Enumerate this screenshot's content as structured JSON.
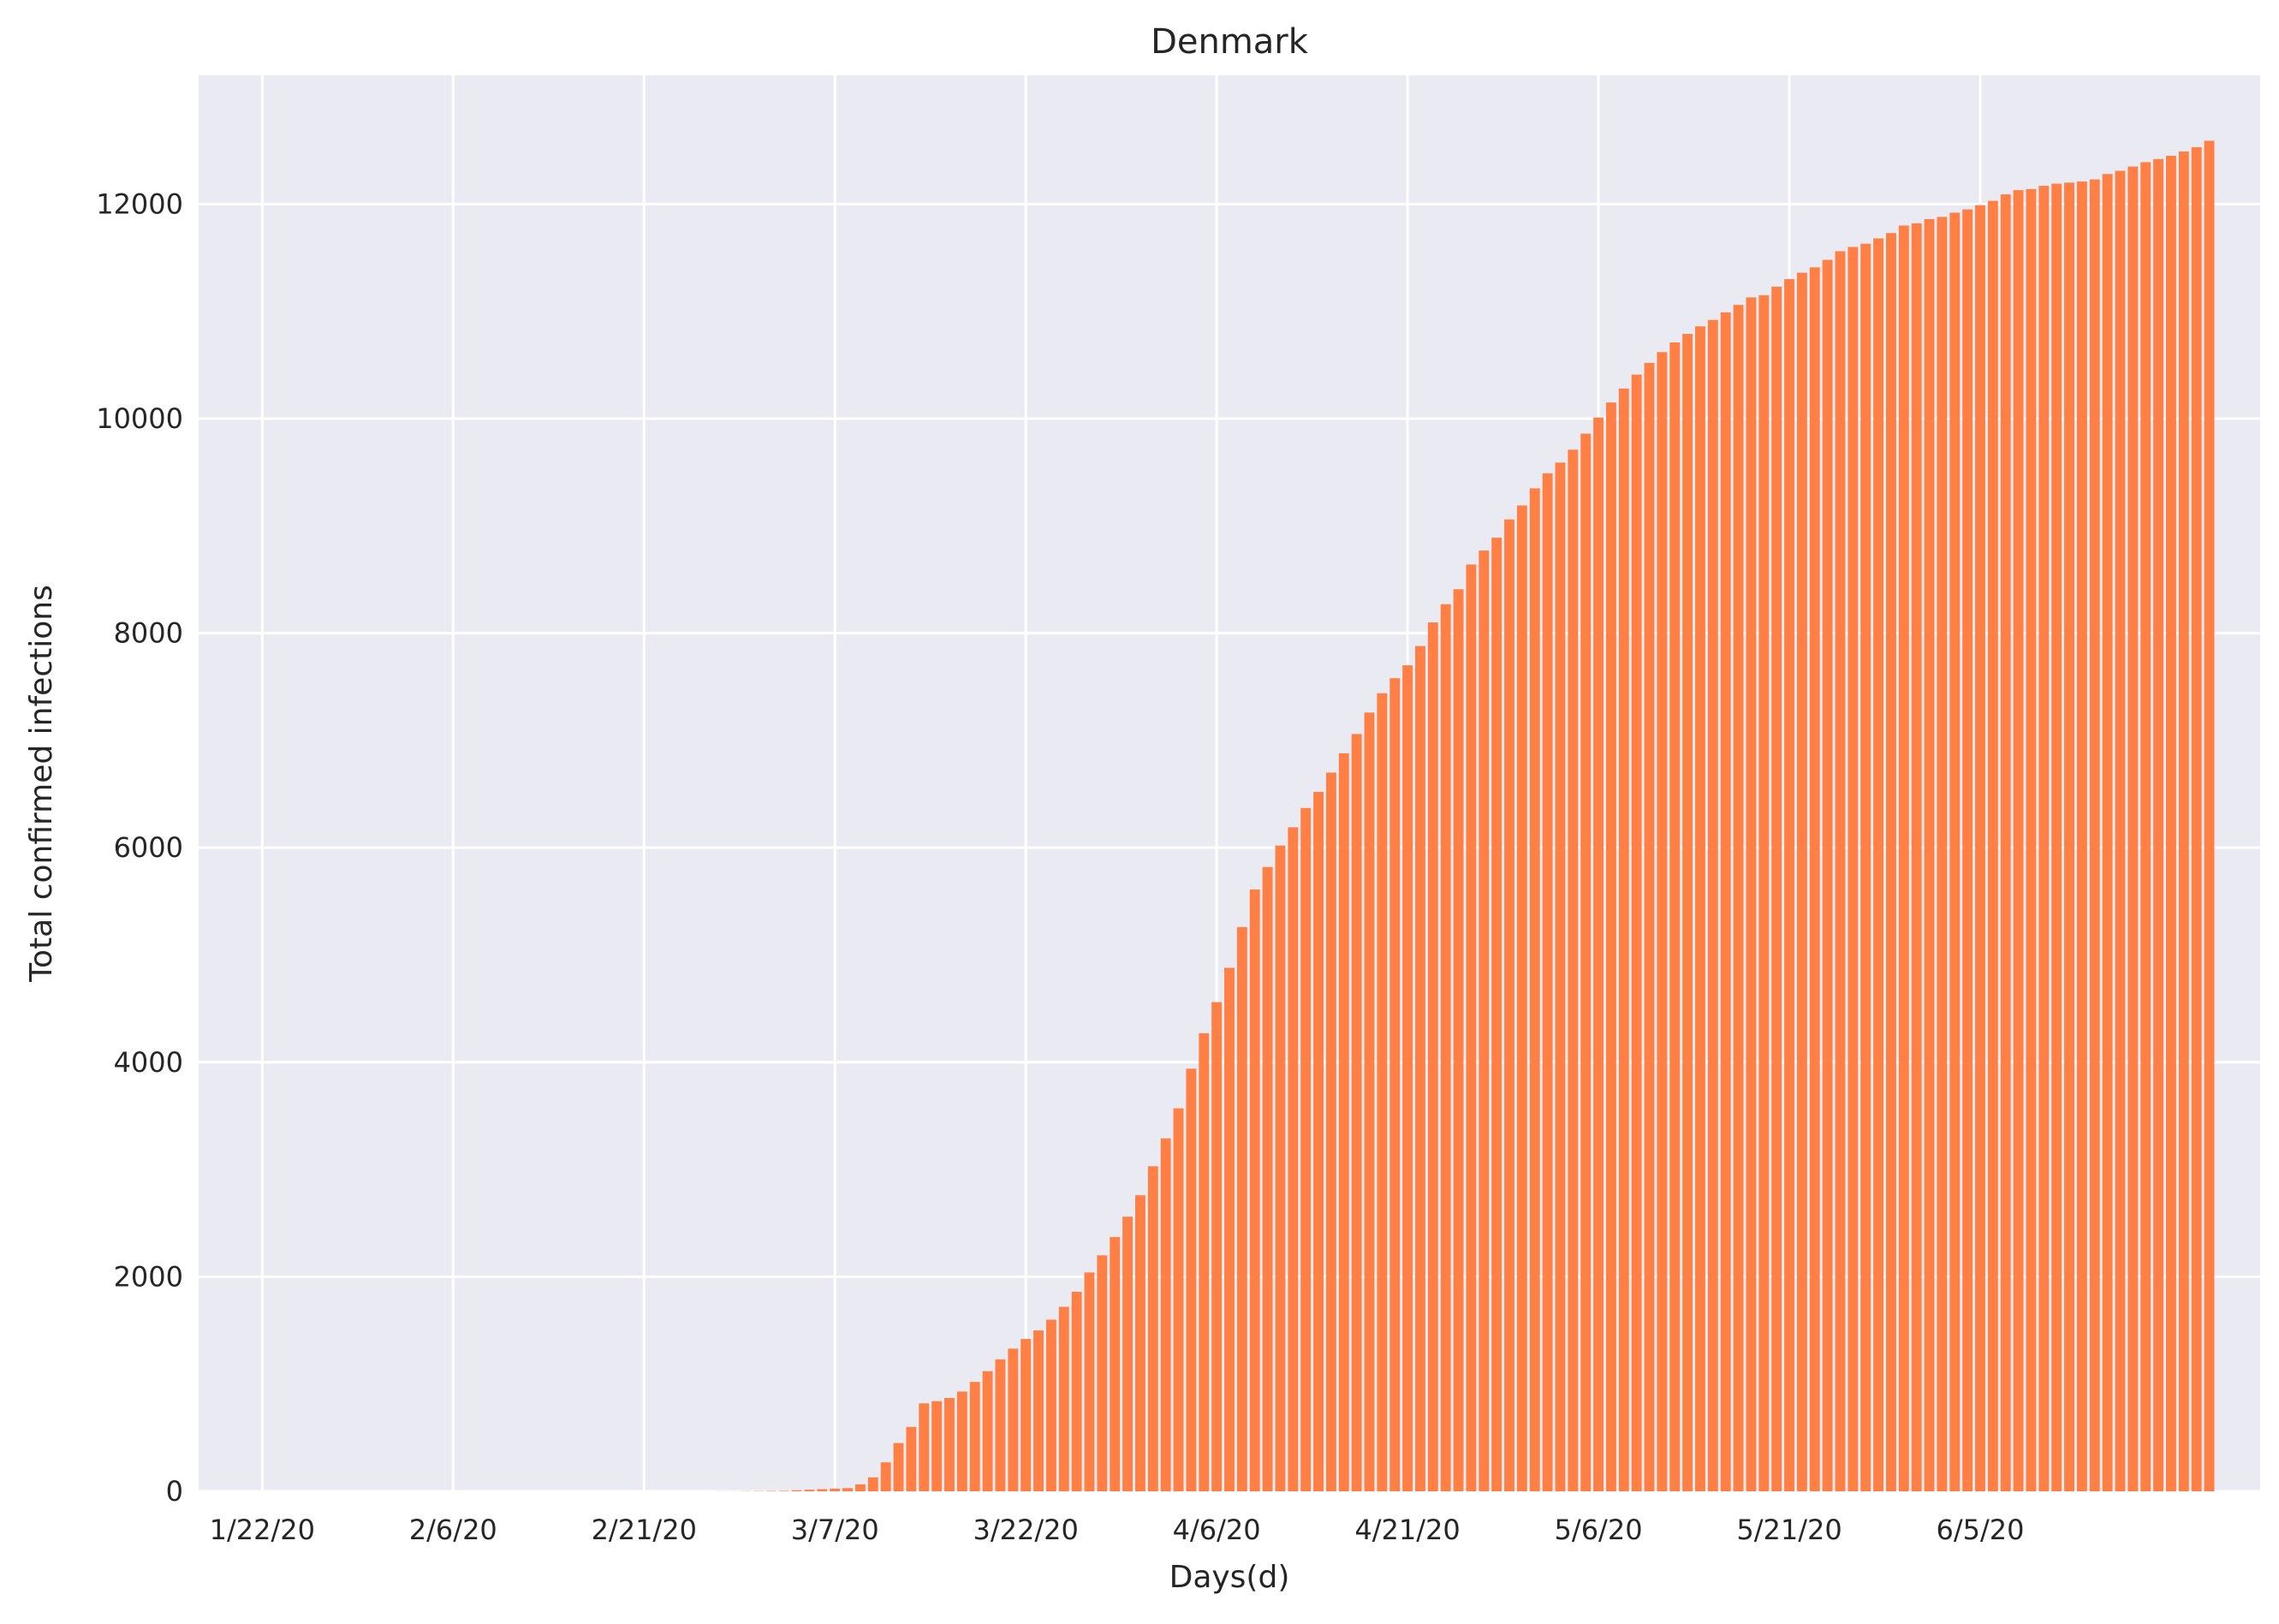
{
  "chart_data": {
    "type": "bar",
    "title": "Denmark",
    "xlabel": "Days(d)",
    "ylabel": "Total confirmed infections",
    "ylim": [
      0,
      13200
    ],
    "xlim": [
      "2020-01-17",
      "2020-06-27"
    ],
    "grid": true,
    "x_ticks": [
      {
        "date": "2020-01-22",
        "label": "1/22/20"
      },
      {
        "date": "2020-02-06",
        "label": "2/6/20"
      },
      {
        "date": "2020-02-21",
        "label": "2/21/20"
      },
      {
        "date": "2020-03-07",
        "label": "3/7/20"
      },
      {
        "date": "2020-03-22",
        "label": "3/22/20"
      },
      {
        "date": "2020-04-06",
        "label": "4/6/20"
      },
      {
        "date": "2020-04-21",
        "label": "4/21/20"
      },
      {
        "date": "2020-05-06",
        "label": "5/6/20"
      },
      {
        "date": "2020-05-21",
        "label": "5/21/20"
      },
      {
        "date": "2020-06-05",
        "label": "6/5/20"
      }
    ],
    "y_ticks": [
      0,
      2000,
      4000,
      6000,
      8000,
      10000,
      12000
    ],
    "colors": {
      "bar": "#ff7f45",
      "background": "#eaeaf2",
      "grid": "#ffffff"
    },
    "series": [
      {
        "start_date": "2020-01-22",
        "values": [
          0,
          0,
          0,
          0,
          0,
          0,
          0,
          0,
          0,
          0,
          0,
          0,
          0,
          0,
          0,
          0,
          0,
          0,
          0,
          0,
          0,
          0,
          0,
          0,
          0,
          0,
          0,
          0,
          0,
          0,
          0,
          0,
          0,
          0,
          0,
          0,
          1,
          1,
          2,
          3,
          4,
          5,
          10,
          15,
          20,
          25,
          30,
          65,
          130,
          270,
          450,
          600,
          820,
          840,
          870,
          930,
          1020,
          1120,
          1230,
          1330,
          1420,
          1500,
          1600,
          1720,
          1860,
          2040,
          2200,
          2370,
          2560,
          2760,
          3030,
          3290,
          3570,
          3940,
          4270,
          4560,
          4880,
          5260,
          5610,
          5820,
          6020,
          6190,
          6370,
          6520,
          6700,
          6880,
          7060,
          7260,
          7440,
          7580,
          7700,
          7880,
          8100,
          8270,
          8410,
          8640,
          8770,
          8890,
          9060,
          9190,
          9350,
          9490,
          9590,
          9710,
          9860,
          10010,
          10150,
          10280,
          10410,
          10520,
          10620,
          10710,
          10790,
          10860,
          10920,
          10990,
          11060,
          11130,
          11150,
          11230,
          11300,
          11360,
          11410,
          11480,
          11560,
          11600,
          11630,
          11680,
          11730,
          11800,
          11820,
          11860,
          11880,
          11920,
          11950,
          11990,
          12030,
          12090,
          12130,
          12140,
          12170,
          12190,
          12200,
          12210,
          12230,
          12280,
          12310,
          12350,
          12390,
          12420,
          12450,
          12490,
          12530,
          12590
        ]
      }
    ]
  }
}
